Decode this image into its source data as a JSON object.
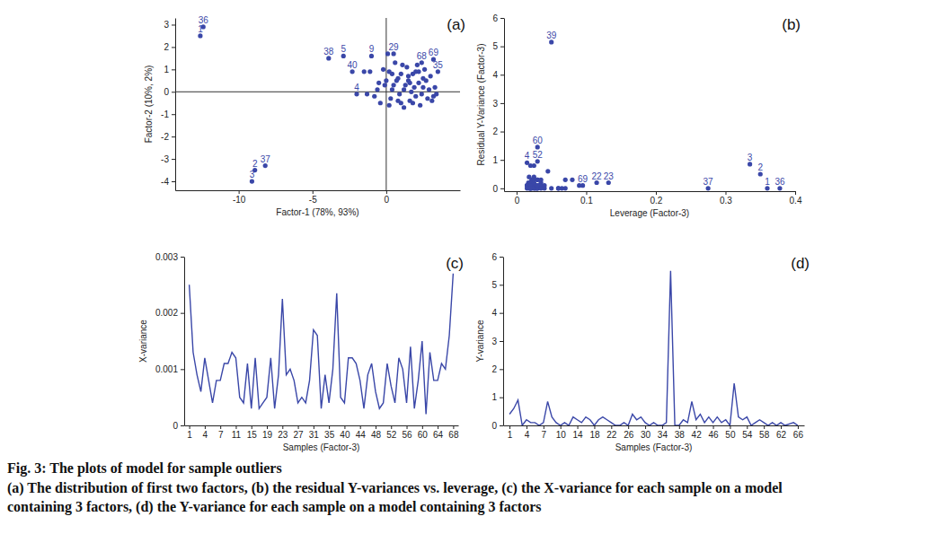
{
  "chart_data": [
    {
      "type": "scatter",
      "title": "(a)",
      "x_label": "Factor-1 (78%, 93%)",
      "y_label": "Factor-2 (10%, 2%)",
      "color": "#3a47a8",
      "x": [
        -12.6,
        -8.9,
        -9.1,
        -2.0,
        -2.9,
        0.5,
        1.2,
        0.8,
        -1.0,
        0.2,
        -1.5,
        1.5,
        2.0,
        -0.5,
        1.0,
        -1.1,
        2.5,
        1.8,
        0.3,
        1.4,
        -0.2,
        2.2,
        0.6,
        1.0,
        2.8,
        0.1,
        0.4,
        3.0,
        0.5,
        1.6,
        -0.8,
        2.0,
        1.3,
        2.6,
        3.5,
        -12.4,
        -8.2,
        -3.9,
        0.9,
        -2.3,
        1.7,
        -0.4,
        2.3,
        0.7,
        1.9,
        -0.1,
        3.1,
        2.4,
        1.1,
        0.2,
        2.7,
        1.5,
        -0.6,
        3.3,
        0.8,
        2.9,
        1.2,
        -1.3,
        2.1,
        0.0,
        1.6,
        2.2,
        3.2,
        1.8,
        2.5,
        0.4,
        3.4,
        2.4,
        3.2
      ],
      "values": [
        2.5,
        -3.5,
        -4.0,
        -0.1,
        1.6,
        0.3,
        0.1,
        0.6,
        1.6,
        0.9,
        0.9,
        0.5,
        -0.2,
        0.4,
        -0.5,
        0.9,
        0.2,
        0.8,
        -0.3,
        1.1,
        1.0,
        0.4,
        1.3,
        0.8,
        -0.3,
        1.7,
        0.1,
        0.7,
        1.7,
        -0.4,
        -0.2,
        0.9,
        0.3,
        1.0,
        0.9,
        2.9,
        -3.3,
        1.5,
        -0.1,
        0.9,
        0.0,
        -0.5,
        -0.6,
        0.5,
        0.2,
        0.3,
        -0.4,
        -0.1,
        1.2,
        -0.6,
        0.5,
        0.7,
        0.1,
        0.2,
        -0.4,
        0.1,
        -0.7,
        -0.1,
        1.2,
        0.5,
        0.4,
        0.9,
        -0.2,
        -0.5,
        0.6,
        0.8,
        -0.1,
        1.3,
        1.45
      ],
      "labels": [
        "1",
        "2",
        "3",
        "4",
        "5",
        null,
        null,
        null,
        "9",
        null,
        null,
        null,
        null,
        null,
        null,
        null,
        null,
        null,
        null,
        null,
        null,
        null,
        null,
        null,
        null,
        null,
        null,
        null,
        "29",
        null,
        null,
        null,
        null,
        null,
        "35",
        "36",
        "37",
        "38",
        null,
        "40",
        null,
        null,
        null,
        null,
        null,
        null,
        null,
        null,
        null,
        null,
        null,
        null,
        null,
        null,
        null,
        null,
        null,
        null,
        null,
        null,
        null,
        null,
        null,
        null,
        null,
        null,
        null,
        "68",
        "69"
      ],
      "xlim": [
        -14.3,
        5
      ],
      "xticks": [
        -10,
        -5,
        0
      ],
      "ylim": [
        -4.4,
        3.3
      ],
      "yticks": [
        -4,
        -3,
        -2,
        -1,
        0,
        1,
        2,
        3
      ]
    },
    {
      "type": "scatter",
      "title": "(b)",
      "x_label": "Leverage (Factor-3)",
      "y_label": "Residual Y-Variance (Factor-3)",
      "color": "#3a47a8",
      "x": [
        0.36,
        0.35,
        0.335,
        0.015,
        0.05,
        0.02,
        0.018,
        0.025,
        0.03,
        0.02,
        0.022,
        0.03,
        0.028,
        0.015,
        0.02,
        0.03,
        0.017,
        0.025,
        0.022,
        0.035,
        0.015,
        0.115,
        0.132,
        0.02,
        0.026,
        0.03,
        0.018,
        0.04,
        0.025,
        0.02,
        0.03,
        0.015,
        0.022,
        0.035,
        0.06,
        0.378,
        0.275,
        0.07,
        0.05,
        0.065,
        0.02,
        0.03,
        0.025,
        0.02,
        0.018,
        0.028,
        0.035,
        0.02,
        0.025,
        0.045,
        0.02,
        0.03,
        0.03,
        0.022,
        0.08,
        0.07,
        0.02,
        0.03,
        0.09,
        0.03,
        0.025,
        0.02,
        0.018,
        0.03,
        0.06,
        0.04,
        0.02,
        0.035,
        0.095
      ],
      "values": [
        0.0,
        0.5,
        0.85,
        0.9,
        0.0,
        0.1,
        0.1,
        0.0,
        0.1,
        0.8,
        0.3,
        0.1,
        0.0,
        0.1,
        0.0,
        0.3,
        0.2,
        0.1,
        0.3,
        0.2,
        0.0,
        0.2,
        0.2,
        0.1,
        0.0,
        0.0,
        0.1,
        0.0,
        0.4,
        0.2,
        0.3,
        0.1,
        0.0,
        0.1,
        0.0,
        0.0,
        0.0,
        0.0,
        5.15,
        0.0,
        0.2,
        0.1,
        0.8,
        0.2,
        0.4,
        0.1,
        0.3,
        0.1,
        0.3,
        0.6,
        0.1,
        0.95,
        0.0,
        0.2,
        0.3,
        0.3,
        0.0,
        0.1,
        0.1,
        1.45,
        0.2,
        0.1,
        0.0,
        0.1,
        0.0,
        0.1,
        0.0,
        0.0,
        0.1
      ],
      "labels": [
        "1",
        "2",
        "3",
        "4",
        null,
        null,
        null,
        null,
        null,
        null,
        null,
        null,
        null,
        null,
        null,
        null,
        null,
        null,
        null,
        null,
        null,
        "22",
        "23",
        null,
        null,
        null,
        null,
        null,
        null,
        null,
        null,
        null,
        null,
        null,
        null,
        "36",
        "37",
        null,
        "39",
        null,
        null,
        null,
        null,
        null,
        null,
        null,
        null,
        null,
        null,
        null,
        null,
        "52",
        null,
        null,
        null,
        null,
        null,
        null,
        null,
        "60",
        null,
        null,
        null,
        null,
        null,
        null,
        null,
        null,
        "69"
      ],
      "xlim": [
        -0.018,
        0.4
      ],
      "xticks": [
        0,
        0.1,
        0.2,
        0.3,
        0.4
      ],
      "ylim": [
        -0.1,
        6
      ],
      "yticks": [
        0,
        1,
        2,
        3,
        4,
        5,
        6
      ]
    },
    {
      "type": "line",
      "title": "(c)",
      "x_label": "Samples (Factor-3)",
      "y_label": "X-variance",
      "color": "#3a47a8",
      "categories": [
        "1",
        null,
        null,
        null,
        "4",
        null,
        null,
        null,
        "7",
        null,
        null,
        null,
        "11",
        null,
        null,
        null,
        "15",
        null,
        null,
        null,
        "19",
        null,
        null,
        null,
        "23",
        null,
        null,
        null,
        "27",
        null,
        null,
        null,
        "31",
        null,
        null,
        null,
        "35",
        null,
        null,
        null,
        "40",
        null,
        null,
        null,
        "44",
        null,
        null,
        null,
        "48",
        null,
        null,
        null,
        "52",
        null,
        null,
        null,
        "56",
        null,
        null,
        null,
        "60",
        null,
        null,
        null,
        "64",
        null,
        null,
        null,
        "68"
      ],
      "values": [
        0.0025,
        0.0013,
        0.0009,
        0.0006,
        0.0012,
        0.0008,
        0.0004,
        0.0008,
        0.0008,
        0.0011,
        0.0011,
        0.0013,
        0.0012,
        0.0005,
        0.0004,
        0.0011,
        0.0003,
        0.0012,
        0.0003,
        0.0004,
        0.0005,
        0.0012,
        0.0003,
        0.0009,
        0.00225,
        0.0009,
        0.001,
        0.0008,
        0.0004,
        0.0005,
        0.0004,
        0.0008,
        0.0017,
        0.0016,
        0.0003,
        0.0009,
        0.0004,
        0.001,
        0.00235,
        0.0005,
        0.0004,
        0.0012,
        0.0012,
        0.0011,
        0.0008,
        0.0003,
        0.0009,
        0.0011,
        0.0006,
        0.0003,
        0.0004,
        0.0011,
        0.0007,
        0.0004,
        0.0012,
        0.001,
        0.0004,
        0.0014,
        0.0003,
        0.0008,
        0.0015,
        0.0002,
        0.0013,
        0.0008,
        0.0008,
        0.0011,
        0.001,
        0.0016,
        0.0027
      ],
      "ylim": [
        0,
        0.003
      ],
      "yticks": [
        0,
        0.001,
        0.002,
        0.003
      ]
    },
    {
      "type": "line",
      "title": "(d)",
      "x_label": "Samples (Factor-3)",
      "y_label": "Y-variance",
      "color": "#3a47a8",
      "categories": [
        "1",
        null,
        null,
        null,
        "4",
        null,
        null,
        null,
        "7",
        null,
        null,
        null,
        "10",
        null,
        null,
        null,
        "14",
        null,
        null,
        null,
        "18",
        null,
        null,
        null,
        "22",
        null,
        null,
        null,
        "26",
        null,
        null,
        null,
        "30",
        null,
        null,
        null,
        "34",
        null,
        null,
        null,
        "38",
        null,
        null,
        null,
        "42",
        null,
        null,
        null,
        "46",
        null,
        null,
        null,
        "50",
        null,
        null,
        null,
        "54",
        null,
        null,
        null,
        "58",
        null,
        null,
        null,
        "62",
        null,
        null,
        null,
        "66"
      ],
      "values": [
        0.4,
        0.6,
        0.9,
        0.0,
        0.2,
        0.1,
        0.1,
        0.0,
        0.1,
        0.85,
        0.3,
        0.1,
        0.0,
        0.1,
        0.0,
        0.3,
        0.2,
        0.1,
        0.3,
        0.2,
        0.0,
        0.2,
        0.3,
        0.2,
        0.1,
        0.0,
        0.0,
        0.1,
        0.0,
        0.4,
        0.2,
        0.3,
        0.1,
        0.0,
        0.1,
        0.0,
        0.0,
        0.1,
        5.5,
        0.0,
        0.0,
        0.2,
        0.1,
        0.85,
        0.2,
        0.4,
        0.1,
        0.3,
        0.1,
        0.3,
        0.1,
        0.2,
        0.0,
        1.5,
        0.3,
        0.2,
        0.3,
        0.0,
        0.1,
        0.2,
        0.1,
        0.0,
        0.1,
        0.0,
        0.1,
        0.0,
        0.05,
        0.1,
        0.0
      ],
      "ylim": [
        0,
        6
      ],
      "yticks": [
        0,
        1,
        2,
        3,
        4,
        5,
        6
      ]
    }
  ],
  "caption": {
    "title": "Fig. 3: The plots of model for sample outliers",
    "lines": [
      "(a) The distribution of first two factors, (b) the residual Y-variances vs. leverage, (c) the X-variance for each sample on a model",
      "containing 3 factors, (d) the Y-variance for each sample on a model containing 3 factors"
    ]
  }
}
